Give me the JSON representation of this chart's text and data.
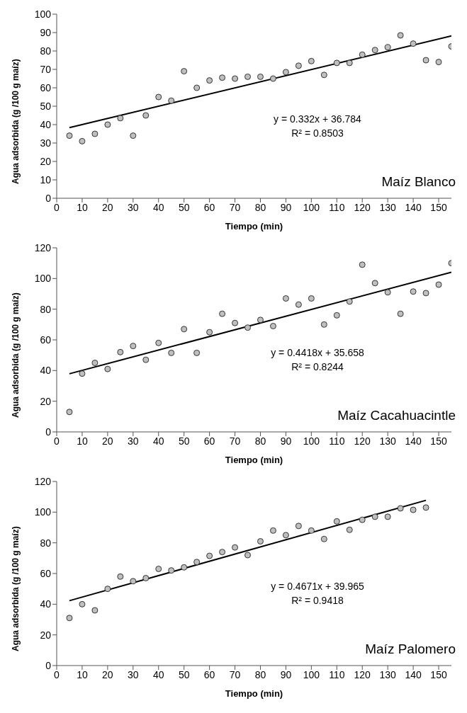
{
  "chart_data": [
    {
      "type": "scatter",
      "title": "Maíz Blanco",
      "xlabel": "Tiempo (min)",
      "ylabel": "Agua adsorbida (g /100 g maíz)",
      "xlim": [
        0,
        155
      ],
      "xticks": [
        0,
        10,
        20,
        30,
        40,
        50,
        60,
        70,
        80,
        90,
        100,
        110,
        120,
        130,
        140,
        150
      ],
      "ylim": [
        0,
        100
      ],
      "yticks": [
        0,
        10,
        20,
        30,
        40,
        50,
        60,
        70,
        80,
        90,
        100
      ],
      "grid": false,
      "annotations": [
        "y = 0.332x + 36.784",
        "R² = 0.8503"
      ],
      "series": [
        {
          "marker": "circle",
          "color": "#bfbfbf",
          "x": [
            5,
            10,
            15,
            20,
            25,
            30,
            35,
            40,
            45,
            50,
            55,
            60,
            65,
            70,
            75,
            80,
            85,
            90,
            95,
            100,
            105,
            110,
            115,
            120,
            125,
            130,
            135,
            140,
            145,
            150,
            155
          ],
          "values": [
            34,
            31,
            35,
            40,
            43.5,
            34,
            45,
            55,
            53,
            69,
            60,
            64,
            65.5,
            65,
            66,
            66,
            65,
            68.5,
            72,
            74.5,
            67,
            73.5,
            73.5,
            78,
            80.5,
            82,
            88.5,
            84,
            75,
            74,
            82.5
          ]
        },
        {
          "type": "line",
          "color": "#000000",
          "x": [
            5,
            155
          ],
          "values": [
            38.4,
            88.2
          ]
        }
      ]
    },
    {
      "type": "scatter",
      "title": "Maíz Cacahuacintle",
      "xlabel": "Tiempo (min)",
      "ylabel": "Agua adsorbida (g /100 g maíz)",
      "xlim": [
        0,
        155
      ],
      "xticks": [
        0,
        10,
        20,
        30,
        40,
        50,
        60,
        70,
        80,
        90,
        100,
        110,
        120,
        130,
        140,
        150
      ],
      "ylim": [
        0,
        120
      ],
      "yticks": [
        0,
        20,
        40,
        60,
        80,
        100,
        120
      ],
      "grid": false,
      "annotations": [
        "y = 0.4418x + 35.658",
        "R² = 0.8244"
      ],
      "series": [
        {
          "marker": "circle",
          "color": "#bfbfbf",
          "x": [
            5,
            10,
            15,
            20,
            25,
            30,
            35,
            40,
            45,
            50,
            55,
            60,
            65,
            70,
            75,
            80,
            85,
            90,
            95,
            100,
            105,
            110,
            115,
            120,
            125,
            130,
            135,
            140,
            145,
            150,
            155
          ],
          "values": [
            13,
            38,
            45,
            41,
            52,
            56,
            47,
            58,
            51.5,
            67,
            51.5,
            65,
            77,
            71,
            68,
            73,
            69,
            87,
            83,
            87,
            70,
            76,
            85,
            109,
            97,
            91,
            77,
            91.5,
            90.5,
            96,
            110
          ]
        },
        {
          "type": "line",
          "color": "#000000",
          "x": [
            5,
            155
          ],
          "values": [
            37.9,
            104.1
          ]
        }
      ]
    },
    {
      "type": "scatter",
      "title": "Maíz Palomero",
      "xlabel": "Tiempo (min)",
      "ylabel": "Agua adsorbida (g /100 g maíz)",
      "xlim": [
        0,
        155
      ],
      "xticks": [
        0,
        10,
        20,
        30,
        40,
        50,
        60,
        70,
        80,
        90,
        100,
        110,
        120,
        130,
        140,
        150
      ],
      "ylim": [
        0,
        120
      ],
      "yticks": [
        0,
        20,
        40,
        60,
        80,
        100,
        120
      ],
      "grid": false,
      "annotations": [
        "y = 0.4671x + 39.965",
        "R² = 0.9418"
      ],
      "series": [
        {
          "marker": "circle",
          "color": "#bfbfbf",
          "x": [
            5,
            10,
            15,
            20,
            25,
            30,
            35,
            40,
            45,
            50,
            55,
            60,
            65,
            70,
            75,
            80,
            85,
            90,
            95,
            100,
            105,
            110,
            115,
            120,
            125,
            130,
            135,
            140,
            145
          ],
          "values": [
            31,
            40,
            36,
            50,
            58,
            55,
            57,
            63,
            62,
            64,
            67.5,
            71.5,
            74,
            77,
            72,
            81,
            88,
            85,
            91,
            88,
            82.5,
            94,
            88.5,
            95,
            97,
            97,
            102.5,
            101.5,
            103
          ]
        },
        {
          "type": "line",
          "color": "#000000",
          "x": [
            5,
            145
          ],
          "values": [
            42.3,
            107.7
          ]
        }
      ]
    }
  ]
}
